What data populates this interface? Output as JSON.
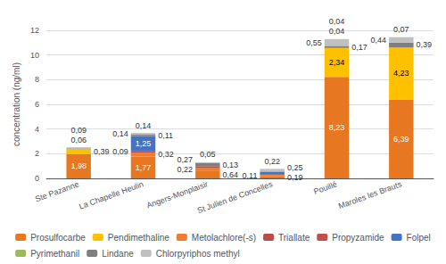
{
  "chart_data": {
    "type": "bar",
    "stacked": true,
    "categories": [
      "Ste Pazanne",
      "La Chapelle Heulin",
      "Angers-Monplaisir",
      "St Julien de Concelles",
      "Pouillé",
      "Maroles les Brauts"
    ],
    "series": [
      {
        "name": "Prosulfocarbe",
        "color": "#E87722",
        "values": [
          1.98,
          1.77,
          0.64,
          0.19,
          8.23,
          6.39
        ],
        "value_labels": [
          "1,98",
          "1,77",
          "0,64",
          "0,19",
          "8,23",
          "6,39"
        ]
      },
      {
        "name": "Pendimethaline",
        "color": "#FFC000",
        "values": [
          0.39,
          0.0,
          0.0,
          0.0,
          2.34,
          4.23
        ],
        "value_labels": [
          "0,39",
          null,
          null,
          null,
          "2,34",
          "4,23"
        ]
      },
      {
        "name": "Metolachlore(-s)",
        "color": "#ED7D31",
        "values": [
          0.0,
          0.32,
          0.22,
          0.11,
          0.0,
          0.0
        ],
        "value_labels": [
          null,
          "0,32",
          "0,22",
          "0,11",
          null,
          null
        ]
      },
      {
        "name": "Triallate",
        "color": "#BE4B48",
        "values": [
          0.0,
          0.09,
          0.13,
          0.0,
          0.0,
          0.0
        ],
        "value_labels": [
          null,
          "0,09",
          "0,13",
          null,
          null,
          null
        ]
      },
      {
        "name": "Propyzamide",
        "color": "#C0504D",
        "values": [
          0.0,
          0.0,
          0.0,
          0.0,
          0.0,
          0.0
        ]
      },
      {
        "name": "Folpel",
        "color": "#4472C4",
        "values": [
          0.0,
          1.25,
          0.0,
          0.25,
          0.0,
          0.0
        ],
        "value_labels": [
          null,
          "1,25",
          null,
          "0,25",
          null,
          null
        ]
      },
      {
        "name": "Pyrimethanil",
        "color": "#9BBB59",
        "values": [
          0.0,
          0.0,
          0.0,
          0.0,
          0.0,
          0.0
        ]
      },
      {
        "name": "Lindane",
        "color": "#7F7F7F",
        "values": [
          0.06,
          0.11,
          0.27,
          0.0,
          0.17,
          0.39
        ],
        "value_labels": [
          null,
          "0,11",
          "0,27",
          null,
          "0,17",
          "0,39"
        ]
      },
      {
        "name": "Chlorpyriphos methyl",
        "color": "#C0C0C0",
        "values": [
          0.09,
          0.14,
          0.05,
          0.22,
          0.55,
          0.44
        ],
        "value_labels": [
          null,
          "0,14",
          null,
          null,
          "0,55",
          "0,44"
        ]
      }
    ],
    "data_labels": true,
    "annotations": [
      {
        "category": "Ste Pazanne",
        "text": "0,06"
      },
      {
        "category": "Ste Pazanne",
        "text": "0,09"
      },
      {
        "category": "La Chapelle Heulin",
        "text": "0,14"
      },
      {
        "category": "Angers-Monplaisir",
        "text": "0,05"
      },
      {
        "category": "St Julien de Concelles",
        "text": "0,22"
      },
      {
        "category": "Pouillé",
        "text": "0,04"
      },
      {
        "category": "Pouillé",
        "text": "0,04"
      },
      {
        "category": "Maroles les Brauts",
        "text": "0,07"
      }
    ],
    "ylabel": "concentration (ng/ml)",
    "ylim": [
      0,
      12
    ],
    "yticks": [
      0,
      2,
      4,
      6,
      8,
      10,
      12
    ],
    "grid": true,
    "legend": "bottom"
  }
}
